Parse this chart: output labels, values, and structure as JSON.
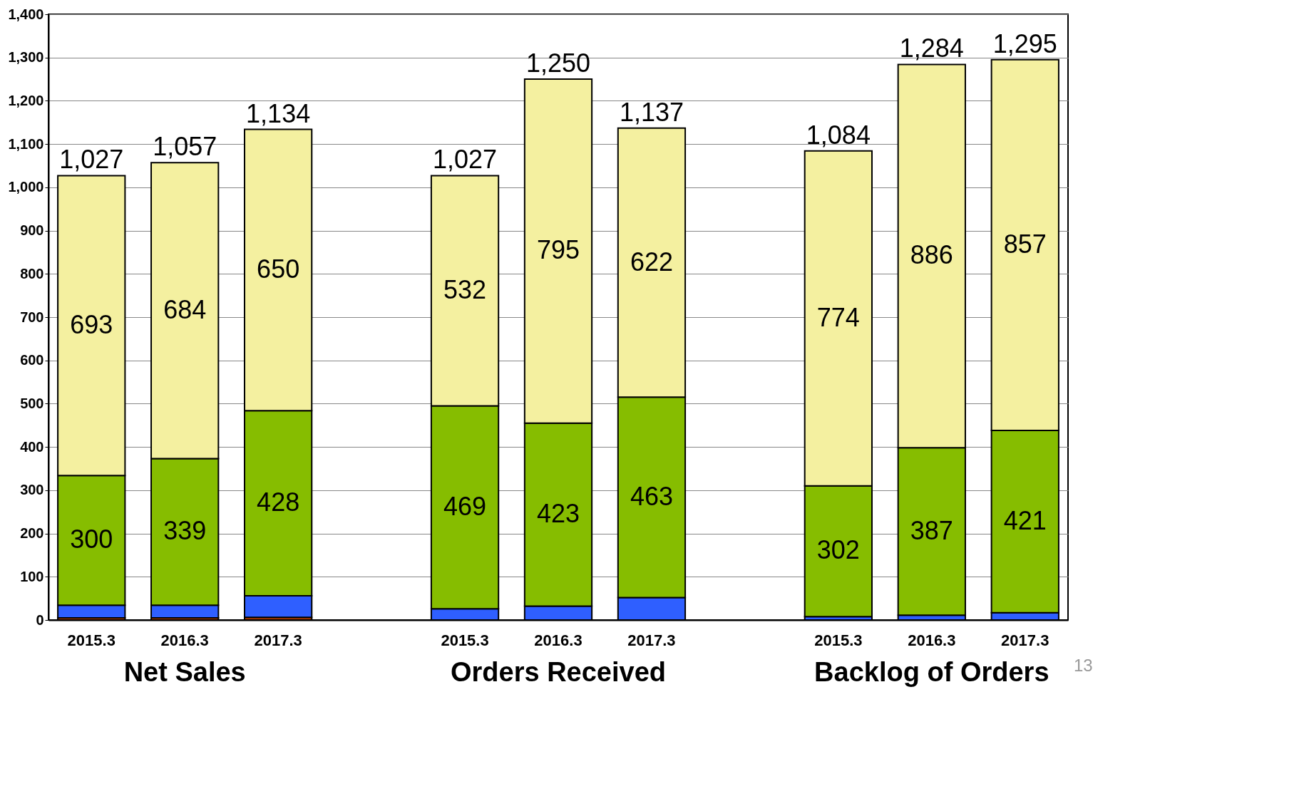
{
  "chart_data": {
    "type": "bar",
    "stacked": true,
    "categories": [
      "2015.3",
      "2016.3",
      "2017.3",
      null,
      "2015.3",
      "2016.3",
      "2017.3",
      null,
      "2015.3",
      "2016.3",
      "2017.3"
    ],
    "series": [
      {
        "color": "#c04000",
        "values": [
          5,
          5,
          6,
          null,
          null,
          null,
          null,
          null,
          null,
          null,
          null
        ]
      },
      {
        "color": "#2f5fff",
        "values": [
          29,
          29,
          50,
          null,
          26,
          32,
          52,
          null,
          8,
          11,
          17
        ]
      },
      {
        "color": "#86bd00",
        "values": [
          300,
          339,
          428,
          null,
          469,
          423,
          463,
          null,
          302,
          387,
          421
        ],
        "value_labels": [
          "300",
          "339",
          "428",
          null,
          "469",
          "423",
          "463",
          null,
          "302",
          "387",
          "421"
        ]
      },
      {
        "color": "#f4f0a0",
        "values": [
          693,
          684,
          650,
          null,
          532,
          795,
          622,
          null,
          774,
          886,
          857
        ],
        "value_labels": [
          "693",
          "684",
          "650",
          null,
          "532",
          "795",
          "622",
          null,
          "774",
          "886",
          "857"
        ]
      }
    ],
    "totals": [
      "1,027",
      "1,057",
      "1,134",
      null,
      "1,027",
      "1,250",
      "1,137",
      null,
      "1,084",
      "1,284",
      "1,295"
    ],
    "ylim": [
      0,
      1400
    ],
    "yticks": [
      {
        "value": 0,
        "label": "0"
      },
      {
        "value": 100,
        "label": "100"
      },
      {
        "value": 200,
        "label": "200"
      },
      {
        "value": 300,
        "label": "300"
      },
      {
        "value": 400,
        "label": "400"
      },
      {
        "value": 500,
        "label": "500"
      },
      {
        "value": 600,
        "label": "600"
      },
      {
        "value": 700,
        "label": "700"
      },
      {
        "value": 800,
        "label": "800"
      },
      {
        "value": 900,
        "label": "900"
      },
      {
        "value": 1000,
        "label": "1,000"
      },
      {
        "value": 1100,
        "label": "1,100"
      },
      {
        "value": 1200,
        "label": "1,200"
      },
      {
        "value": 1300,
        "label": "1,300"
      },
      {
        "value": 1400,
        "label": "1,400"
      }
    ],
    "grid": "y",
    "legend": false,
    "annotations": [
      "Net Sales",
      "Orders Received",
      "Backlog of Orders",
      "13"
    ]
  }
}
